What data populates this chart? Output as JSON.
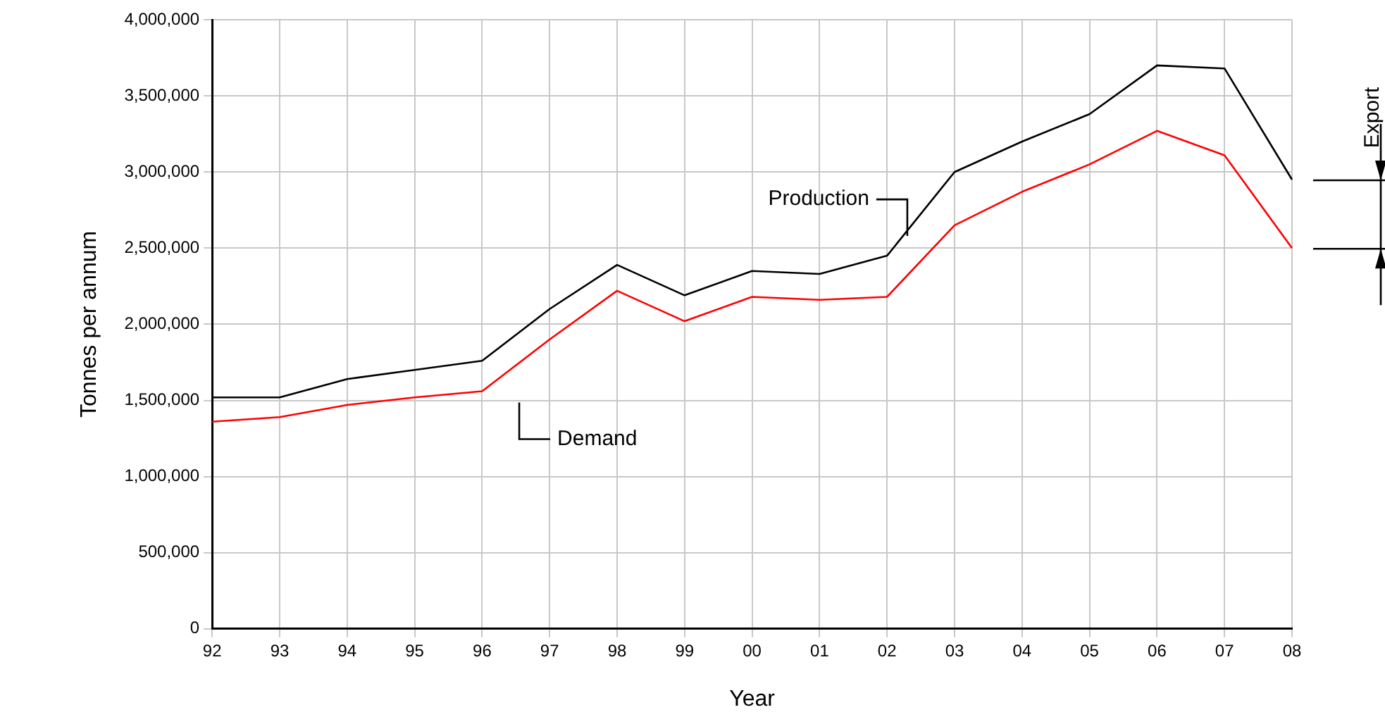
{
  "chart_data": {
    "type": "line",
    "xlabel": "Year",
    "ylabel": "Tonnes per annum",
    "categories": [
      "92",
      "93",
      "94",
      "95",
      "96",
      "97",
      "98",
      "99",
      "00",
      "01",
      "02",
      "03",
      "04",
      "05",
      "06",
      "07",
      "08"
    ],
    "series": [
      {
        "name": "Production",
        "color": "#000000",
        "values": [
          1520000,
          1520000,
          1640000,
          1700000,
          1760000,
          2100000,
          2390000,
          2190000,
          2350000,
          2330000,
          2450000,
          3000000,
          3200000,
          3380000,
          3700000,
          3680000,
          2950000
        ]
      },
      {
        "name": "Demand",
        "color": "#ff0000",
        "values": [
          1360000,
          1390000,
          1470000,
          1520000,
          1560000,
          1900000,
          2220000,
          2020000,
          2180000,
          2160000,
          2180000,
          2650000,
          2870000,
          3050000,
          3270000,
          3110000,
          2500000
        ]
      }
    ],
    "annotations": [
      "Export"
    ],
    "ylim": [
      0,
      4000000
    ],
    "yticks": [
      {
        "value": 0,
        "label": "0"
      },
      {
        "value": 500000,
        "label": "500,000"
      },
      {
        "value": 1000000,
        "label": "1,000,000"
      },
      {
        "value": 1500000,
        "label": "1,500,000"
      },
      {
        "value": 2000000,
        "label": "2,000,000"
      },
      {
        "value": 2500000,
        "label": "2,500,000"
      },
      {
        "value": 3000000,
        "label": "3,000,000"
      },
      {
        "value": 3500000,
        "label": "3,500,000"
      },
      {
        "value": 4000000,
        "label": "4,000,000"
      }
    ],
    "grid": true,
    "legend": false,
    "marker": "none",
    "line_style": "solid"
  }
}
